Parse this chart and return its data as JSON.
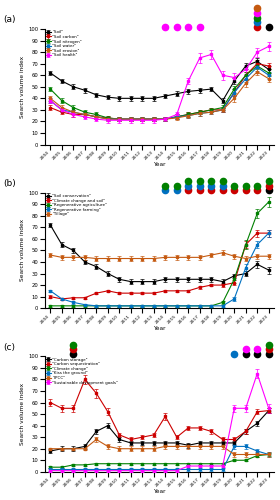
{
  "years": [
    2004,
    2005,
    2006,
    2007,
    2008,
    2009,
    2010,
    2011,
    2012,
    2013,
    2014,
    2015,
    2016,
    2017,
    2018,
    2019,
    2020,
    2021,
    2022,
    2023
  ],
  "panel_a": {
    "ylabel": "Search volume index",
    "xlabel": "Year",
    "ylim": [
      0,
      100
    ],
    "series": [
      {
        "name": "\"Soil\"",
        "color": "#000000",
        "data": [
          62,
          55,
          50,
          47,
          43,
          41,
          40,
          40,
          40,
          40,
          42,
          44,
          46,
          47,
          48,
          38,
          55,
          68,
          72,
          65
        ],
        "err": [
          2,
          2,
          2,
          2,
          2,
          2,
          2,
          2,
          2,
          2,
          2,
          2,
          2,
          2,
          2,
          2,
          3,
          3,
          3,
          3
        ]
      },
      {
        "name": "\"Soil carbon\"",
        "color": "#cc0000",
        "data": [
          32,
          28,
          26,
          26,
          24,
          23,
          22,
          22,
          22,
          22,
          22,
          24,
          26,
          28,
          30,
          30,
          45,
          60,
          70,
          68
        ],
        "err": [
          2,
          2,
          2,
          2,
          2,
          2,
          2,
          2,
          2,
          2,
          2,
          2,
          2,
          2,
          2,
          2,
          3,
          3,
          3,
          3
        ]
      },
      {
        "name": "\"Soil nitrogen\"",
        "color": "#008000",
        "data": [
          48,
          38,
          32,
          28,
          26,
          23,
          22,
          22,
          22,
          22,
          22,
          24,
          26,
          28,
          30,
          32,
          48,
          60,
          68,
          62
        ],
        "err": [
          2,
          2,
          2,
          2,
          2,
          2,
          2,
          2,
          2,
          2,
          2,
          2,
          2,
          2,
          2,
          2,
          3,
          3,
          3,
          3
        ]
      },
      {
        "name": "\"Soil water\"",
        "color": "#0070c0",
        "data": [
          38,
          30,
          28,
          26,
          24,
          22,
          22,
          22,
          22,
          22,
          22,
          24,
          25,
          27,
          28,
          30,
          45,
          57,
          67,
          60
        ],
        "err": [
          2,
          2,
          2,
          2,
          2,
          2,
          2,
          2,
          2,
          2,
          2,
          2,
          2,
          2,
          2,
          2,
          3,
          3,
          3,
          3
        ]
      },
      {
        "name": "\"Soil erosion\"",
        "color": "#c55a11",
        "data": [
          40,
          32,
          28,
          26,
          24,
          22,
          22,
          22,
          22,
          22,
          22,
          23,
          25,
          27,
          28,
          30,
          40,
          53,
          63,
          57
        ],
        "err": [
          2,
          2,
          2,
          2,
          2,
          2,
          2,
          2,
          2,
          2,
          2,
          2,
          2,
          2,
          2,
          2,
          3,
          3,
          3,
          3
        ]
      },
      {
        "name": "\"Soil health\"",
        "color": "#ff00ff",
        "data": [
          38,
          30,
          26,
          24,
          22,
          21,
          21,
          21,
          21,
          21,
          22,
          26,
          55,
          75,
          78,
          60,
          58,
          65,
          80,
          85
        ],
        "err": [
          2,
          2,
          2,
          2,
          2,
          2,
          2,
          2,
          2,
          2,
          2,
          2,
          3,
          4,
          4,
          4,
          4,
          4,
          4,
          4
        ]
      }
    ],
    "stars": [
      {
        "year_idx": 10,
        "colors": [
          "#ff00ff"
        ],
        "row": 0
      },
      {
        "year_idx": 11,
        "colors": [
          "#ff00ff"
        ],
        "row": 0
      },
      {
        "year_idx": 12,
        "colors": [
          "#ff00ff"
        ],
        "row": 0
      },
      {
        "year_idx": 13,
        "colors": [
          "#ff00ff"
        ],
        "row": 0
      },
      {
        "year_idx": 18,
        "colors": [
          "#cc0000",
          "#0070c0",
          "#008000",
          "#ff00ff",
          "#c55a11"
        ],
        "row": 0
      },
      {
        "year_idx": 19,
        "colors": [
          "#000000"
        ],
        "row": 0
      }
    ]
  },
  "panel_b": {
    "ylabel": "Search volume index",
    "xlabel": "Year",
    "ylim": [
      0,
      100
    ],
    "series": [
      {
        "name": "\"Soil conservation\"",
        "color": "#000000",
        "data": [
          72,
          55,
          50,
          40,
          36,
          30,
          25,
          23,
          23,
          23,
          25,
          25,
          25,
          25,
          25,
          23,
          28,
          30,
          38,
          33
        ],
        "err": [
          2,
          2,
          2,
          2,
          2,
          2,
          2,
          2,
          2,
          2,
          2,
          2,
          2,
          2,
          2,
          2,
          2,
          2,
          3,
          3
        ]
      },
      {
        "name": "\"Climate change and soil\"",
        "color": "#cc0000",
        "data": [
          10,
          8,
          9,
          9,
          13,
          15,
          13,
          13,
          13,
          13,
          15,
          15,
          15,
          18,
          20,
          20,
          22,
          55,
          65,
          65
        ],
        "err": [
          1,
          1,
          1,
          1,
          1,
          1,
          1,
          1,
          1,
          1,
          1,
          1,
          1,
          1,
          1,
          2,
          2,
          3,
          3,
          3
        ]
      },
      {
        "name": "\"Regenerative agriculture\"",
        "color": "#008000",
        "data": [
          2,
          2,
          2,
          2,
          2,
          2,
          2,
          2,
          2,
          2,
          2,
          2,
          2,
          2,
          2,
          5,
          25,
          55,
          82,
          92
        ],
        "err": [
          1,
          1,
          1,
          1,
          1,
          1,
          1,
          1,
          1,
          1,
          1,
          1,
          1,
          1,
          1,
          1,
          3,
          4,
          4,
          4
        ]
      },
      {
        "name": "\"Regenerative farming\"",
        "color": "#0070c0",
        "data": [
          15,
          8,
          5,
          3,
          2,
          2,
          2,
          2,
          2,
          2,
          2,
          2,
          2,
          2,
          2,
          2,
          8,
          35,
          55,
          65
        ],
        "err": [
          1,
          1,
          1,
          1,
          1,
          1,
          1,
          1,
          1,
          1,
          1,
          1,
          1,
          1,
          1,
          1,
          2,
          3,
          3,
          3
        ]
      },
      {
        "name": "\"Tillage\"",
        "color": "#c55a11",
        "data": [
          46,
          44,
          44,
          44,
          43,
          43,
          43,
          43,
          43,
          43,
          44,
          44,
          44,
          44,
          46,
          48,
          45,
          43,
          45,
          45
        ],
        "err": [
          2,
          2,
          2,
          2,
          2,
          2,
          2,
          2,
          2,
          2,
          2,
          2,
          2,
          2,
          2,
          2,
          2,
          2,
          2,
          2
        ]
      }
    ],
    "stars": [
      {
        "year_idx": 10,
        "colors": [
          "#0070c0",
          "#008000"
        ]
      },
      {
        "year_idx": 11,
        "colors": [
          "#0070c0",
          "#008000"
        ]
      },
      {
        "year_idx": 12,
        "colors": [
          "#cc0000",
          "#0070c0",
          "#008000"
        ]
      },
      {
        "year_idx": 13,
        "colors": [
          "#cc0000",
          "#0070c0",
          "#008000"
        ]
      },
      {
        "year_idx": 14,
        "colors": [
          "#cc0000",
          "#0070c0",
          "#008000"
        ]
      },
      {
        "year_idx": 15,
        "colors": [
          "#cc0000",
          "#0070c0",
          "#008000"
        ]
      },
      {
        "year_idx": 16,
        "colors": [
          "#cc0000",
          "#008000"
        ]
      },
      {
        "year_idx": 17,
        "colors": [
          "#cc0000",
          "#008000"
        ]
      },
      {
        "year_idx": 18,
        "colors": [
          "#cc0000",
          "#008000"
        ]
      },
      {
        "year_idx": 19,
        "colors": [
          "#000000",
          "#cc0000",
          "#008000"
        ]
      }
    ]
  },
  "panel_c": {
    "ylabel": "Search volume index",
    "xlabel": "Year",
    "ylim": [
      0,
      100
    ],
    "series": [
      {
        "name": "\"Carbon storage\"",
        "color": "#000000",
        "data": [
          18,
          20,
          20,
          22,
          35,
          40,
          28,
          25,
          25,
          25,
          25,
          25,
          23,
          25,
          25,
          25,
          25,
          35,
          42,
          53
        ],
        "err": [
          2,
          2,
          2,
          2,
          2,
          2,
          2,
          2,
          2,
          2,
          2,
          2,
          2,
          2,
          2,
          2,
          2,
          2,
          2,
          2
        ]
      },
      {
        "name": "\"Carbon sequestration\"",
        "color": "#cc0000",
        "data": [
          60,
          55,
          55,
          80,
          68,
          52,
          32,
          28,
          30,
          32,
          48,
          30,
          38,
          38,
          35,
          28,
          28,
          35,
          52,
          53
        ],
        "err": [
          3,
          3,
          3,
          4,
          4,
          3,
          2,
          2,
          2,
          2,
          3,
          2,
          2,
          2,
          2,
          2,
          2,
          2,
          2,
          2
        ]
      },
      {
        "name": "\"Climate change\"",
        "color": "#008000",
        "data": [
          4,
          4,
          6,
          6,
          7,
          7,
          7,
          7,
          7,
          7,
          7,
          7,
          7,
          7,
          7,
          7,
          10,
          10,
          14,
          15
        ],
        "err": [
          1,
          1,
          1,
          1,
          1,
          1,
          1,
          1,
          1,
          1,
          1,
          1,
          1,
          1,
          1,
          1,
          1,
          1,
          1,
          1
        ]
      },
      {
        "name": "\"Kiss the ground\"",
        "color": "#0070c0",
        "data": [
          2,
          2,
          2,
          2,
          2,
          2,
          2,
          2,
          2,
          2,
          2,
          2,
          2,
          2,
          2,
          2,
          22,
          22,
          18,
          15
        ],
        "err": [
          1,
          1,
          1,
          1,
          1,
          1,
          1,
          1,
          1,
          1,
          1,
          1,
          1,
          1,
          1,
          1,
          2,
          2,
          2,
          2
        ]
      },
      {
        "name": "\"IPCC\"",
        "color": "#c55a11",
        "data": [
          20,
          20,
          20,
          20,
          28,
          22,
          20,
          20,
          20,
          20,
          22,
          22,
          22,
          22,
          22,
          22,
          15,
          15,
          15,
          15
        ],
        "err": [
          1,
          1,
          1,
          1,
          2,
          2,
          2,
          2,
          2,
          2,
          2,
          2,
          2,
          2,
          2,
          2,
          2,
          2,
          2,
          2
        ]
      },
      {
        "name": "\"Sustainable devlopment goals\"",
        "color": "#ff00ff",
        "data": [
          1,
          1,
          1,
          1,
          1,
          1,
          1,
          1,
          1,
          1,
          1,
          1,
          5,
          5,
          5,
          5,
          55,
          55,
          85,
          55
        ],
        "err": [
          1,
          1,
          1,
          1,
          1,
          1,
          1,
          1,
          1,
          1,
          1,
          1,
          1,
          1,
          1,
          1,
          3,
          3,
          4,
          4
        ]
      }
    ],
    "stars": [
      {
        "year_idx": 2,
        "colors": [
          "#000000",
          "#cc0000",
          "#008000"
        ]
      },
      {
        "year_idx": 16,
        "colors": [
          "#0070c0"
        ]
      },
      {
        "year_idx": 17,
        "colors": [
          "#000000",
          "#ff00ff"
        ]
      },
      {
        "year_idx": 18,
        "colors": [
          "#000000",
          "#ff00ff"
        ]
      },
      {
        "year_idx": 19,
        "colors": [
          "#000000",
          "#cc0000",
          "#008000"
        ]
      }
    ]
  }
}
